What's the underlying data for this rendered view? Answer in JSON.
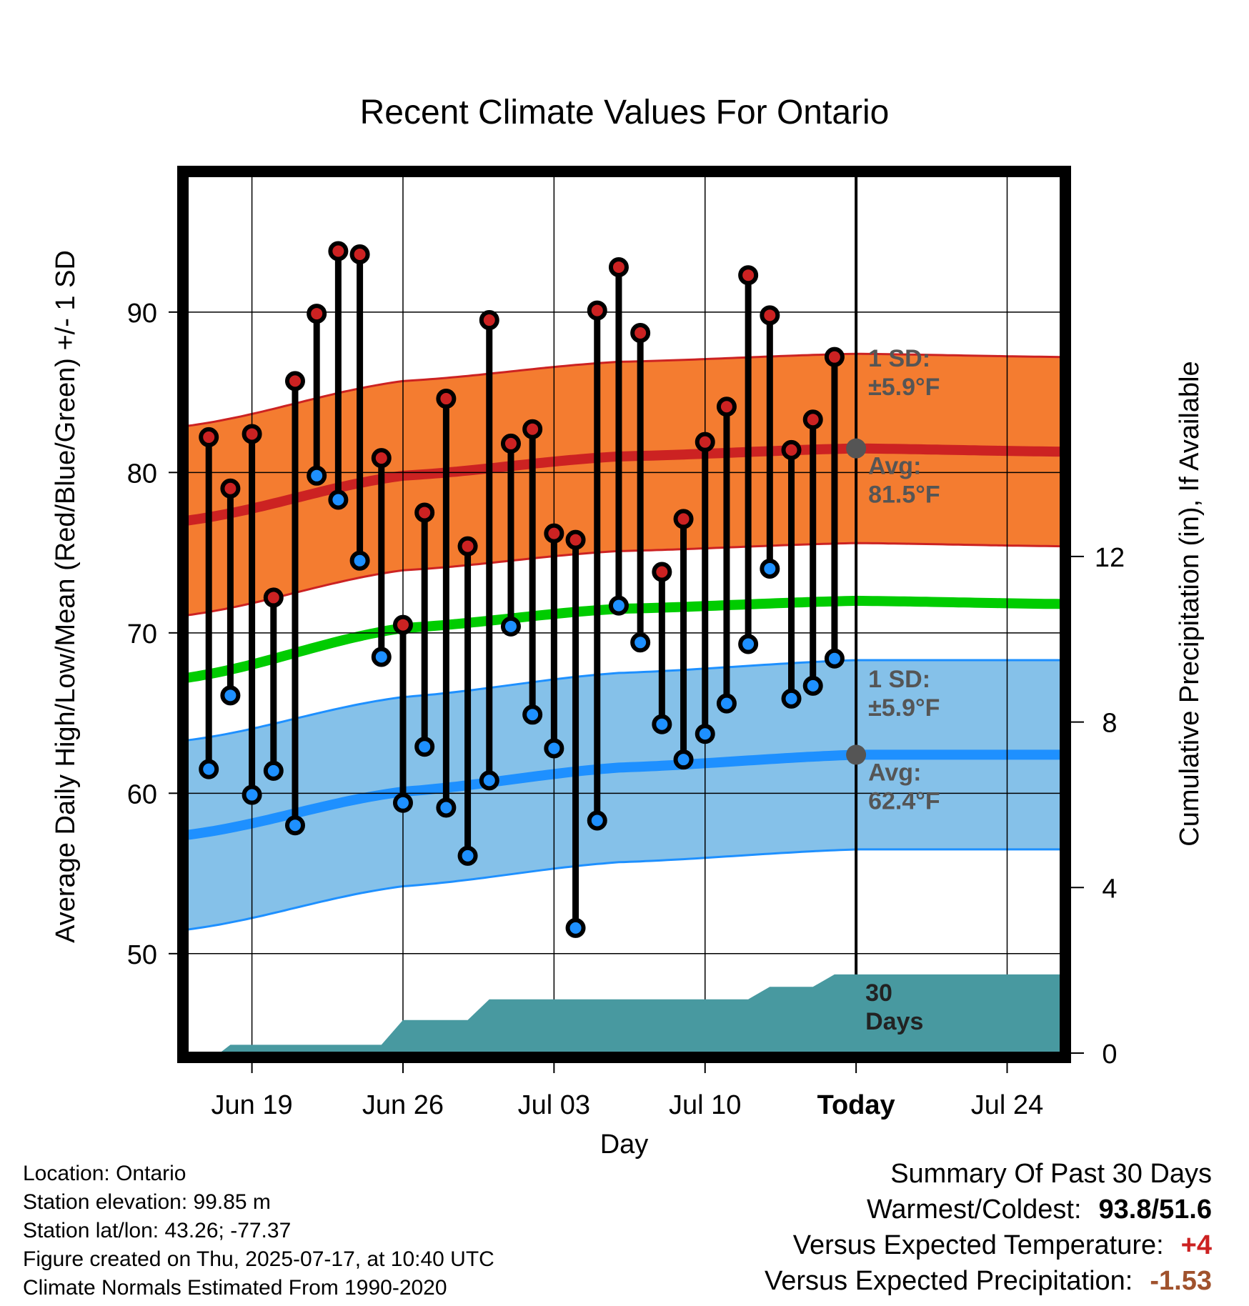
{
  "title": "Recent Climate Values For Ontario",
  "y_left_label": "Average Daily High/Low/Mean (Red/Blue/Green) +/- 1 SD",
  "y_right_label": "Cumulative Precipitation (in), If Available",
  "x_label": "Day",
  "today_label": "Today",
  "days_label_num": "30",
  "days_label_word": "Days",
  "high_band": {
    "sd_title": "1 SD:",
    "sd_value": "±5.9°F",
    "avg_title": "Avg:",
    "avg_value": "81.5°F"
  },
  "low_band": {
    "sd_title": "1 SD:",
    "sd_value": "±5.9°F",
    "avg_title": "Avg:",
    "avg_value": "62.4°F"
  },
  "info": {
    "location": "Location: Ontario",
    "elevation": "Station elevation: 99.85 m",
    "latlon": "Station lat/lon: 43.26; -77.37",
    "created": "Figure created on Thu, 2025-07-17, at 10:40 UTC",
    "normals": "Climate Normals Estimated From 1990-2020"
  },
  "summary": {
    "heading": "Summary Of Past 30 Days",
    "warm_cold_label": "Warmest/Coldest:",
    "warm_cold_value": "93.8/51.6",
    "temp_label": "Versus Expected Temperature:",
    "temp_value": "+4",
    "precip_label": "Versus Expected Precipitation:",
    "precip_value": "-1.53"
  },
  "colors": {
    "high_band": "#f47c30",
    "high_line": "#cc2222",
    "low_band": "#85c1e9",
    "low_line": "#1e90ff",
    "mean_line": "#00cc00",
    "precip": "#4899a0",
    "high_dot": "#cc2222",
    "low_dot": "#1e90ff",
    "temp_value": "#cc2222",
    "precip_value": "#a0522d"
  },
  "chart_data": {
    "type": "line",
    "x_ticks": [
      "Jun 19",
      "Jun 26",
      "Jul 03",
      "Jul 10",
      "Today",
      "Jul 24"
    ],
    "x_tick_days": [
      3,
      10,
      17,
      24,
      31,
      38
    ],
    "x_range_days": [
      0,
      40.5
    ],
    "ylim": [
      43.8,
      98.5
    ],
    "y_ticks": [
      50,
      60,
      70,
      80,
      90
    ],
    "y2_ticks": [
      0,
      4,
      8,
      12
    ],
    "y2_range": [
      0,
      21.2
    ],
    "daily_days": [
      1,
      2,
      3,
      4,
      5,
      6,
      7,
      8,
      9,
      10,
      11,
      12,
      13,
      14,
      15,
      16,
      17,
      18,
      19,
      20,
      21,
      22,
      23,
      24,
      25,
      26,
      27,
      28,
      29,
      30
    ],
    "daily_high": [
      82.2,
      79.0,
      82.4,
      72.2,
      85.7,
      89.9,
      93.8,
      93.6,
      80.9,
      70.5,
      77.5,
      84.6,
      75.4,
      89.5,
      81.8,
      82.7,
      76.2,
      75.8,
      90.1,
      92.8,
      88.7,
      73.8,
      77.1,
      81.9,
      84.1,
      92.3,
      89.8,
      81.4,
      83.3,
      87.2
    ],
    "daily_low": [
      61.5,
      66.1,
      59.9,
      61.4,
      58.0,
      79.8,
      78.3,
      74.5,
      68.5,
      59.4,
      62.9,
      59.1,
      56.1,
      60.8,
      70.4,
      64.9,
      62.8,
      51.6,
      58.3,
      71.7,
      69.4,
      64.3,
      62.1,
      63.7,
      65.6,
      69.3,
      74.0,
      65.9,
      66.7,
      68.4
    ],
    "normals_days": [
      0,
      10,
      20,
      31,
      40.5
    ],
    "normal_high": [
      77.0,
      79.8,
      81.0,
      81.5,
      81.3
    ],
    "normal_mean": [
      67.2,
      70.3,
      71.5,
      72.0,
      71.8
    ],
    "normal_low": [
      57.4,
      60.1,
      61.6,
      62.4,
      62.4
    ],
    "sd": 5.9,
    "precip_steps": [
      [
        0,
        0
      ],
      [
        1.5,
        0
      ],
      [
        2,
        0.2
      ],
      [
        9,
        0.2
      ],
      [
        10,
        0.8
      ],
      [
        13,
        0.8
      ],
      [
        14,
        1.3
      ],
      [
        26,
        1.3
      ],
      [
        27,
        1.6
      ],
      [
        29,
        1.6
      ],
      [
        30,
        1.9
      ],
      [
        40.5,
        1.9
      ]
    ]
  }
}
